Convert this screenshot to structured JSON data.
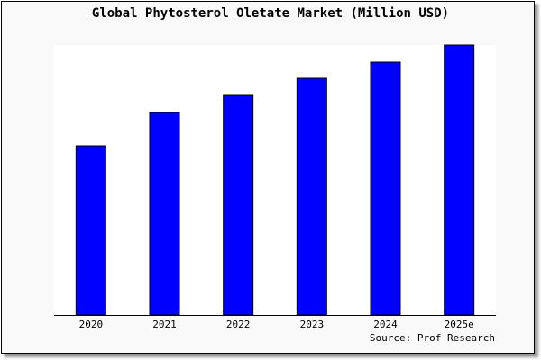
{
  "chart_data": {
    "type": "bar",
    "title": "Global Phytosterol Oletate Market (Million USD)",
    "categories": [
      "2020",
      "2021",
      "2022",
      "2023",
      "2024",
      "2025e"
    ],
    "values": [
      188,
      225,
      244,
      263,
      281,
      300
    ],
    "ylim": [
      0,
      300
    ],
    "xlabel": "",
    "ylabel": "",
    "grid": false,
    "bar_color": "#0000ff",
    "source": "Source: Prof Research"
  }
}
